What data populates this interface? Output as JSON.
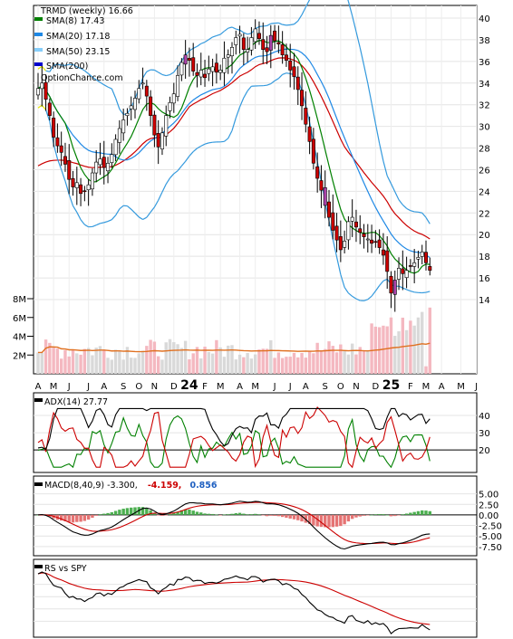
{
  "chart_data": [
    {
      "type": "candlestick",
      "panel": "price",
      "title": "TRMD (weekly) 16.66",
      "brand": "OptionChance.com",
      "y_ticks": [
        14,
        16,
        18,
        20,
        22,
        24,
        26,
        28,
        30,
        32,
        34,
        36,
        38,
        40
      ],
      "ylim": [
        12,
        41.5
      ],
      "x_month_labels": [
        {
          "w": 0,
          "label": "A"
        },
        {
          "w": 4,
          "label": "M"
        },
        {
          "w": 8,
          "label": "J"
        },
        {
          "w": 13,
          "label": "J"
        },
        {
          "w": 17,
          "label": "A"
        },
        {
          "w": 22,
          "label": "S"
        },
        {
          "w": 26,
          "label": "O"
        },
        {
          "w": 30,
          "label": "N"
        },
        {
          "w": 35,
          "label": "D"
        },
        {
          "w": 39,
          "label": "24"
        },
        {
          "w": 43,
          "label": "F"
        },
        {
          "w": 47,
          "label": "M"
        },
        {
          "w": 52,
          "label": "A"
        },
        {
          "w": 56,
          "label": "M"
        },
        {
          "w": 61,
          "label": "J"
        },
        {
          "w": 65,
          "label": "J"
        },
        {
          "w": 69,
          "label": "A"
        },
        {
          "w": 74,
          "label": "S"
        },
        {
          "w": 78,
          "label": "O"
        },
        {
          "w": 82,
          "label": "N"
        },
        {
          "w": 87,
          "label": "D"
        },
        {
          "w": 91,
          "label": "25"
        },
        {
          "w": 96,
          "label": "F"
        },
        {
          "w": 100,
          "label": "M"
        },
        {
          "w": 104,
          "label": "A"
        },
        {
          "w": 109,
          "label": "M"
        },
        {
          "w": 113,
          "label": "J"
        }
      ],
      "close": [
        33.5,
        34.0,
        32.5,
        31.0,
        29.0,
        28.2,
        27.6,
        26.5,
        25.1,
        24.4,
        24.8,
        23.8,
        24.0,
        24.6,
        25.7,
        26.7,
        27.0,
        26.2,
        26.6,
        27.4,
        28.8,
        29.8,
        30.6,
        31.2,
        31.9,
        32.6,
        33.5,
        34.0,
        32.8,
        31.0,
        29.2,
        28.1,
        29.4,
        31.0,
        32.2,
        33.0,
        34.7,
        35.9,
        36.6,
        36.1,
        35.1,
        34.7,
        35.2,
        34.5,
        35.3,
        35.5,
        35.0,
        35.2,
        36.3,
        36.6,
        37.3,
        38.2,
        38.5,
        37.1,
        37.1,
        38.2,
        39.0,
        38.1,
        37.1,
        36.9,
        38.4,
        37.9,
        37.6,
        36.6,
        36.1,
        35.2,
        34.6,
        33.4,
        31.9,
        30.2,
        28.6,
        26.6,
        25.2,
        24.1,
        22.7,
        21.6,
        20.4,
        19.5,
        18.6,
        19.4,
        21.2,
        21.6,
        20.7,
        20.2,
        19.8,
        19.6,
        19.2,
        19.3,
        18.8,
        18.1,
        16.6,
        14.6,
        15.8,
        16.9,
        16.4,
        16.7,
        17.1,
        17.4,
        17.9,
        18.4,
        17.4,
        16.7
      ],
      "series": [
        {
          "name": "SMA(8)",
          "label": "SMA(8) 17.43",
          "color": "#008000"
        },
        {
          "name": "SMA(20)",
          "label": "SMA(20) 17.18",
          "color": "#1e88e5"
        },
        {
          "name": "SMA(50)",
          "label": "SMA(50) 23.15",
          "color": "#87cefa"
        },
        {
          "name": "SMA(200)",
          "label": "SMA(200)",
          "color": "#0000cc"
        }
      ],
      "bollinger": {
        "color": "#3399dd",
        "squeeze_color": "#e6e600"
      },
      "trend_line": {
        "name": "long average",
        "color": "#cc0000"
      },
      "candle_colors": {
        "up": "#ffffff",
        "down": "#cc0000",
        "reversal": "#aa44aa"
      }
    },
    {
      "type": "bar",
      "panel": "volume",
      "y_ticks": [
        {
          "v": 2,
          "label": "2M"
        },
        {
          "v": 4,
          "label": "4M"
        },
        {
          "v": 6,
          "label": "6M"
        },
        {
          "v": 8,
          "label": "8M"
        }
      ],
      "ylim": [
        0,
        8.5
      ],
      "average_color": "#e07020",
      "bar_colors": {
        "up": "#d9d9d9",
        "down": "#f4b8c0"
      }
    },
    {
      "type": "line",
      "panel": "adx",
      "title": "ADX(14) 27.77",
      "y_ticks": [
        20,
        30,
        40
      ],
      "ylim": [
        8,
        50
      ],
      "reference": 20,
      "series": [
        {
          "name": "ADX",
          "color": "#000000"
        },
        {
          "name": "+DI",
          "color": "#008000"
        },
        {
          "name": "-DI",
          "color": "#cc0000"
        }
      ]
    },
    {
      "type": "line",
      "panel": "macd",
      "title": "MACD(8,40,9) -3.300,",
      "title_value_red": "-4.159,",
      "title_value_blue": "0.856",
      "y_ticks": [
        {
          "v": 5,
          "label": "5.00"
        },
        {
          "v": 2.5,
          "label": "2.50"
        },
        {
          "v": 0,
          "label": "0.00"
        },
        {
          "v": -2.5,
          "label": "-2.50"
        },
        {
          "v": -5,
          "label": "-5.00"
        },
        {
          "v": -7.5,
          "label": "-7.50"
        }
      ],
      "ylim": [
        -8.6,
        6.2
      ],
      "series": [
        {
          "name": "MACD",
          "color": "#000000"
        },
        {
          "name": "Signal",
          "color": "#cc0000"
        }
      ],
      "histogram_colors": {
        "positive": "#4caf50",
        "negative": "#e57373"
      }
    },
    {
      "type": "line",
      "panel": "rs",
      "title": "RS vs SPY",
      "series": [
        {
          "name": "RS",
          "color": "#000000"
        },
        {
          "name": "RS average",
          "color": "#cc0000"
        }
      ]
    }
  ]
}
